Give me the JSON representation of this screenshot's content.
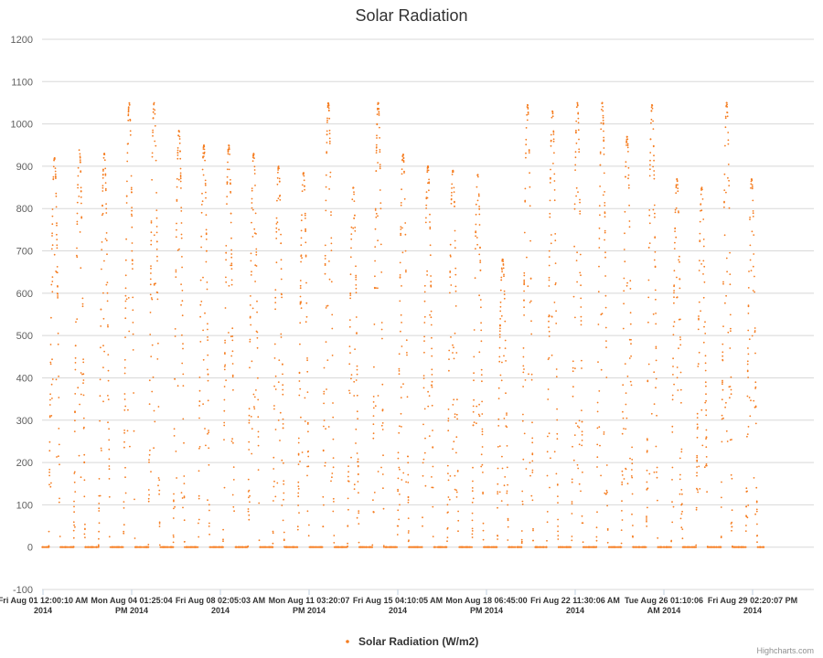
{
  "chart_data": {
    "type": "scatter",
    "title": "Solar Radiation",
    "xlabel": "",
    "ylabel": "",
    "ylim": [
      -100,
      1200
    ],
    "y_ticks": [
      -100,
      0,
      100,
      200,
      300,
      400,
      500,
      600,
      700,
      800,
      900,
      1000,
      1100,
      1200
    ],
    "x_range_days": [
      0,
      31
    ],
    "x_tick_labels": [
      [
        "Fri Aug 01 12:00:10 AM",
        "2014"
      ],
      [
        "Mon Aug 04 01:25:04",
        "PM 2014"
      ],
      [
        "Fri Aug 08 02:05:03 AM",
        "2014"
      ],
      [
        "Mon Aug 11 03:20:07",
        "PM 2014"
      ],
      [
        "Fri Aug 15 04:10:05 AM",
        "2014"
      ],
      [
        "Mon Aug 18 06:45:00",
        "PM 2014"
      ],
      [
        "Fri Aug 22 11:30:06 AM",
        "2014"
      ],
      [
        "Tue Aug 26 01:10:06",
        "AM 2014"
      ],
      [
        "Fri Aug 29 02:20:07 PM",
        "2014"
      ]
    ],
    "grid": true,
    "legend_position": "bottom-center",
    "series": [
      {
        "name": "Solar Radiation (W/m2)",
        "color": "#f57c1f",
        "daily_peaks_wm2": [
          920,
          940,
          930,
          1050,
          1050,
          985,
          950,
          950,
          930,
          900,
          885,
          1050,
          850,
          1050,
          930,
          900,
          890,
          880,
          680,
          1045,
          1030,
          1050,
          1050,
          970,
          1045,
          870,
          850,
          1050,
          870
        ]
      }
    ]
  },
  "credit": "Highcharts.com"
}
